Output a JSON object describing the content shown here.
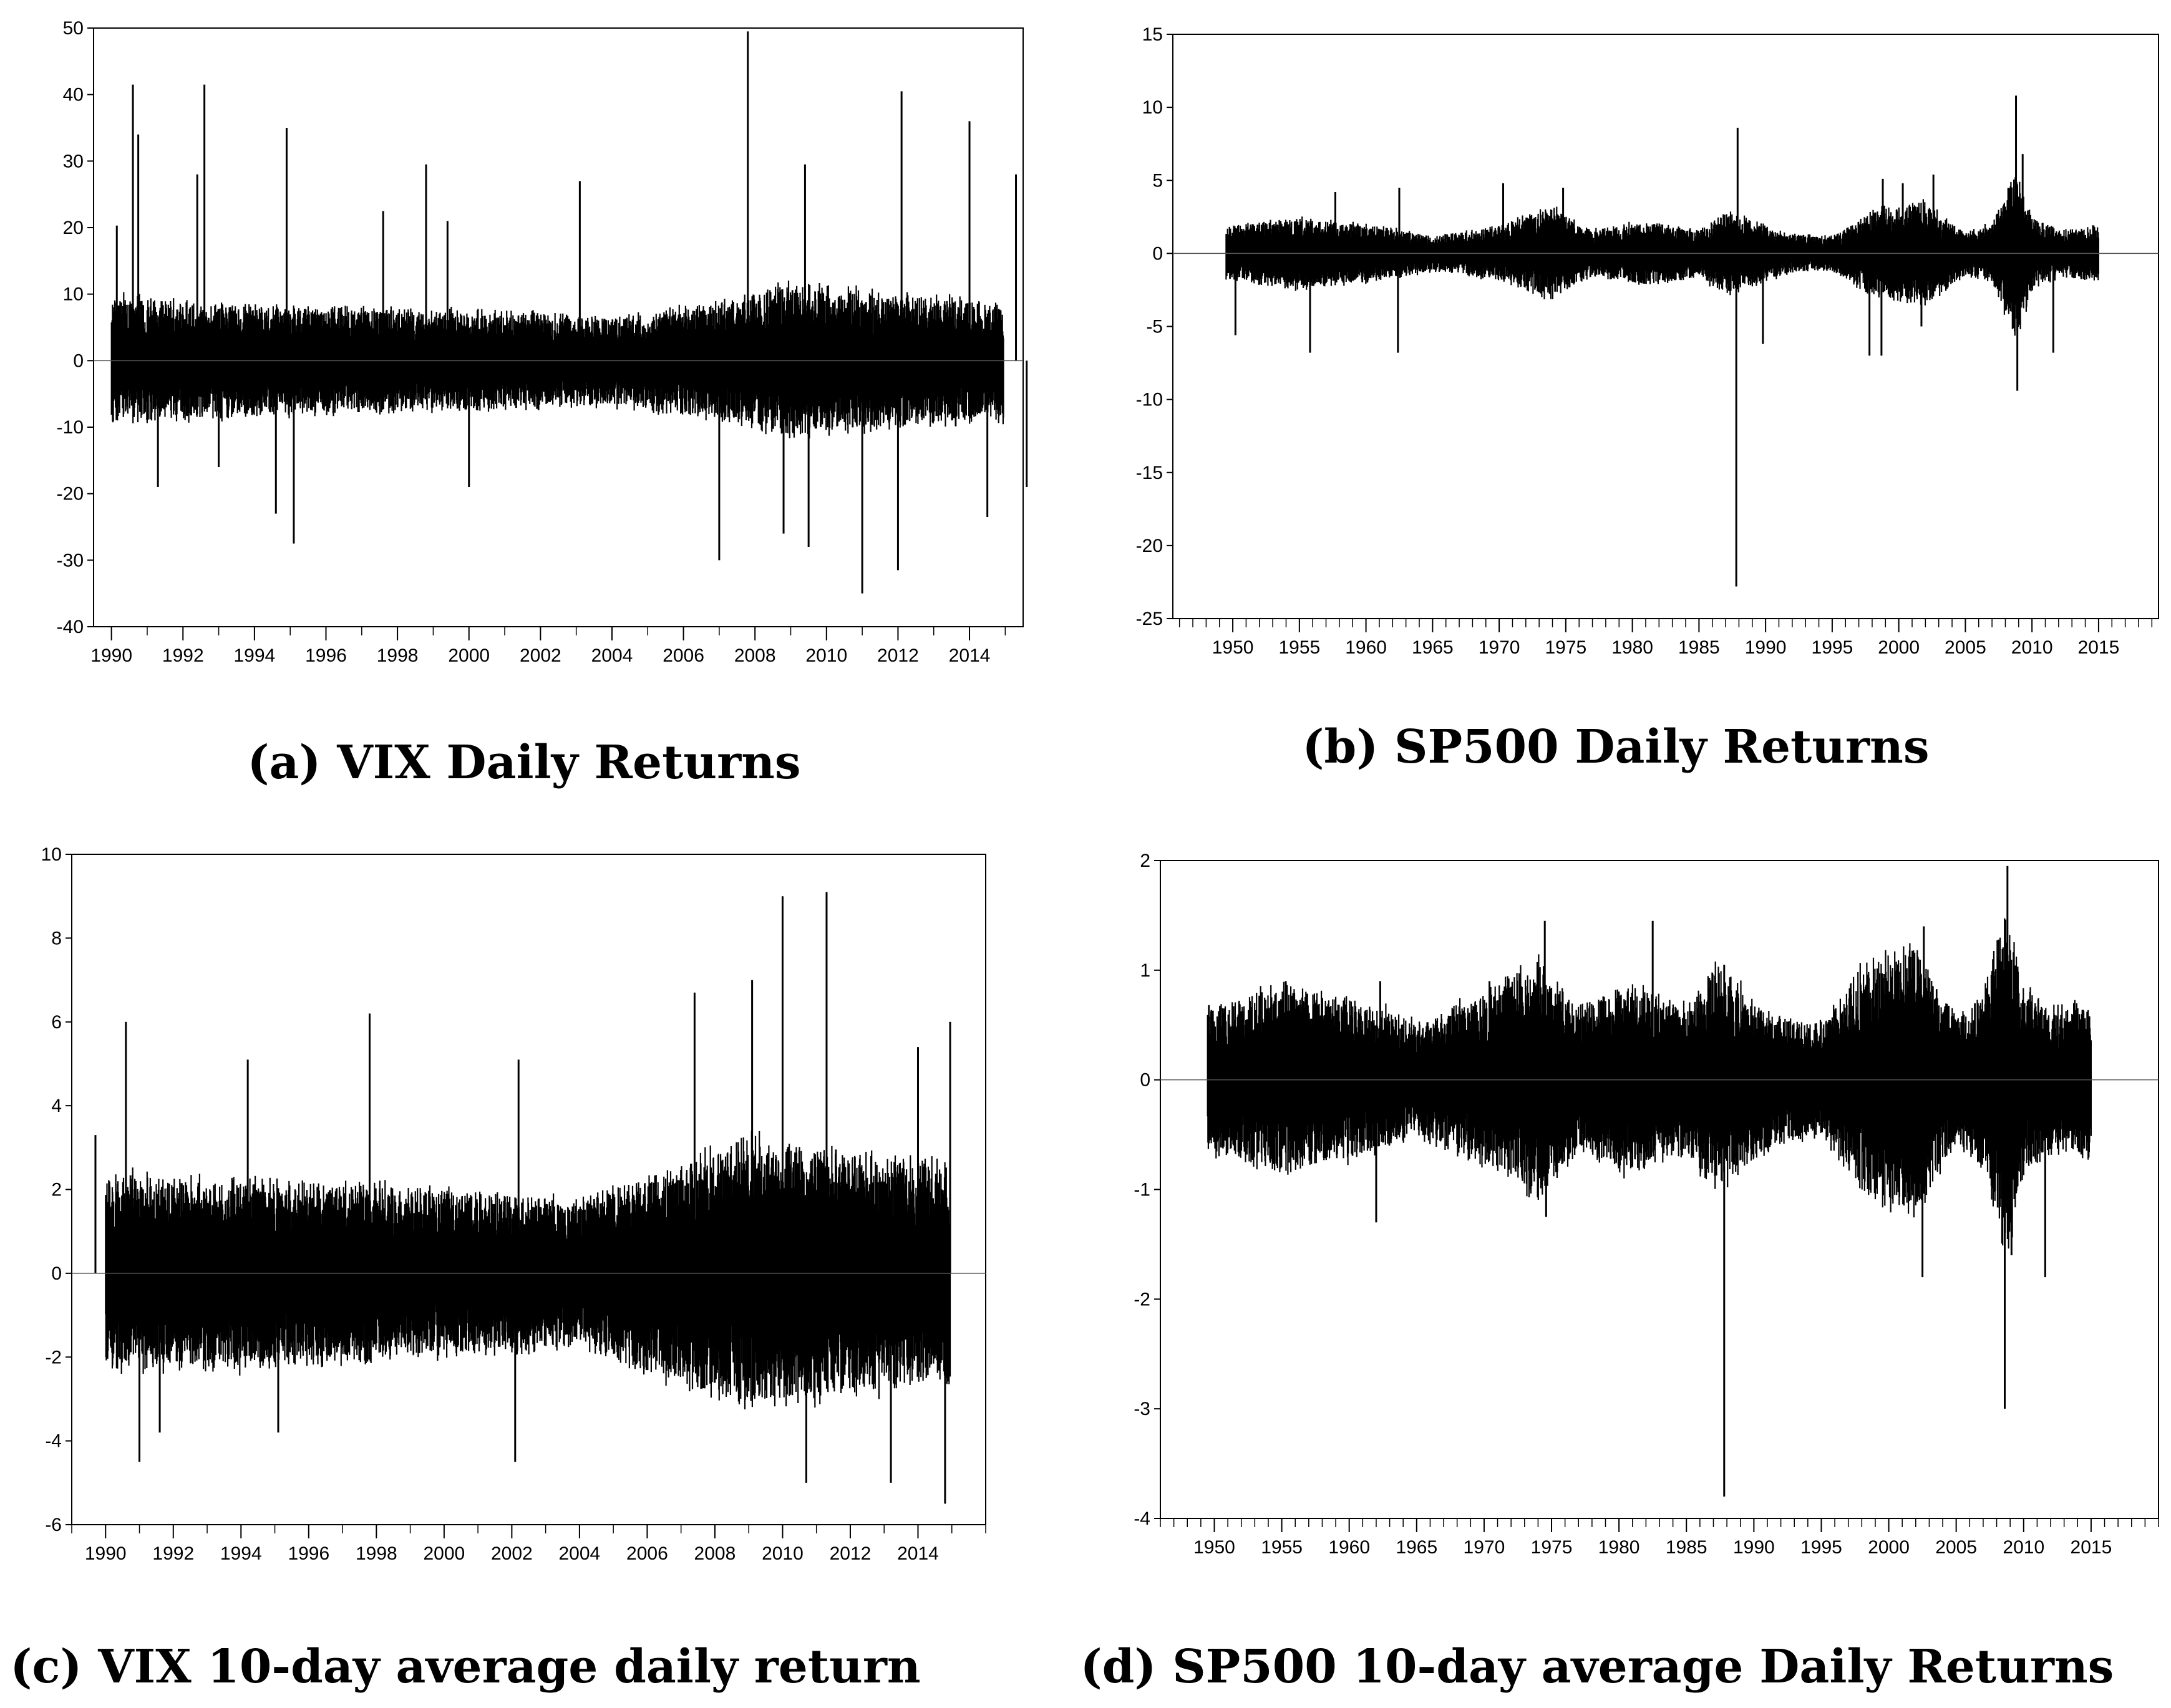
{
  "chart_data": [
    {
      "type": "line",
      "caption": "(a) VIX Daily Returns",
      "x_range": [
        1989.5,
        2015.5
      ],
      "ylim": [
        -40,
        50
      ],
      "y_ticks": [
        "50",
        "40",
        "30",
        "20",
        "10",
        "0",
        "-10",
        "-20",
        "-30",
        "-40"
      ],
      "x_ticks": [
        "1990",
        "1992",
        "1994",
        "1996",
        "1998",
        "2000",
        "2002",
        "2004",
        "2006",
        "2008",
        "2010",
        "2012",
        "2014"
      ],
      "data_range": [
        1990.0,
        2014.95
      ],
      "zero_line": true,
      "series_color": "#000000",
      "band": [
        [
          1990,
          6.5
        ],
        [
          1996,
          5.5
        ],
        [
          2002,
          5
        ],
        [
          2004,
          4.5
        ],
        [
          2007,
          6
        ],
        [
          2009,
          8
        ],
        [
          2012,
          7
        ],
        [
          2015,
          6
        ]
      ],
      "spikes": [
        [
          1990.15,
          20.3
        ],
        [
          1990.6,
          41.5
        ],
        [
          1990.75,
          34
        ],
        [
          1991.3,
          -19
        ],
        [
          1992.6,
          41.5
        ],
        [
          1992.4,
          28
        ],
        [
          1993.0,
          -16
        ],
        [
          1994.6,
          -23
        ],
        [
          1994.9,
          35
        ],
        [
          1995.1,
          -27.5
        ],
        [
          1997.6,
          22.5
        ],
        [
          1998.8,
          29.5
        ],
        [
          1999.4,
          21
        ],
        [
          2000.0,
          -19
        ],
        [
          2003.1,
          27
        ],
        [
          2007.0,
          -30
        ],
        [
          2007.8,
          49.5
        ],
        [
          2008.8,
          -26
        ],
        [
          2009.4,
          29.5
        ],
        [
          2009.5,
          -28
        ],
        [
          2011.0,
          -35
        ],
        [
          2012.1,
          40.5
        ],
        [
          2012.0,
          -31.5
        ],
        [
          2014.0,
          36
        ],
        [
          2014.5,
          -23.5
        ],
        [
          2015.3,
          28
        ],
        [
          2015.6,
          -19
        ]
      ]
    },
    {
      "type": "line",
      "caption": "(b) SP500 Daily Returns",
      "x_range": [
        1945.5,
        2019.5
      ],
      "ylim": [
        -25,
        15
      ],
      "y_ticks": [
        "15",
        "10",
        "5",
        "0",
        "-5",
        "-10",
        "-15",
        "-20",
        "-25"
      ],
      "x_ticks": [
        "1950",
        "1955",
        "1960",
        "1965",
        "1970",
        "1975",
        "1980",
        "1985",
        "1990",
        "1995",
        "2000",
        "2005",
        "2010",
        "2015"
      ],
      "data_range": [
        1949.5,
        2015.0
      ],
      "zero_line": true,
      "series_color": "#000000",
      "band": [
        [
          1950,
          1.3
        ],
        [
          1955,
          1.7
        ],
        [
          1962,
          1.2
        ],
        [
          1965,
          0.8
        ],
        [
          1970,
          1.3
        ],
        [
          1974,
          2.2
        ],
        [
          1977,
          1.1
        ],
        [
          1981,
          1.5
        ],
        [
          1985,
          1.1
        ],
        [
          1987,
          2
        ],
        [
          1992,
          0.9
        ],
        [
          1995,
          0.8
        ],
        [
          1998,
          2
        ],
        [
          2002,
          2.5
        ],
        [
          2005,
          1
        ],
        [
          2007,
          1.4
        ],
        [
          2008.8,
          4
        ],
        [
          2010,
          1.7
        ],
        [
          2012,
          1.1
        ],
        [
          2015,
          1.3
        ]
      ],
      "spikes": [
        [
          1950.2,
          -5.6
        ],
        [
          1955.8,
          -6.8
        ],
        [
          1957.7,
          4.2
        ],
        [
          1962.4,
          -6.8
        ],
        [
          1962.5,
          4.5
        ],
        [
          1970.3,
          4.8
        ],
        [
          1974.8,
          4.5
        ],
        [
          1987.8,
          -22.8
        ],
        [
          1987.9,
          8.6
        ],
        [
          1989.8,
          -6.2
        ],
        [
          1997.8,
          -7
        ],
        [
          1998.7,
          -7
        ],
        [
          1998.8,
          5.1
        ],
        [
          2000.3,
          4.8
        ],
        [
          2001.7,
          -5
        ],
        [
          2002.6,
          5.4
        ],
        [
          2008.8,
          10.8
        ],
        [
          2008.9,
          -9.4
        ],
        [
          2009.3,
          6.8
        ],
        [
          2011.6,
          -6.8
        ]
      ]
    },
    {
      "type": "line",
      "caption": "(c) VIX 10-day average daily return",
      "x_range": [
        1989.0,
        2016.0
      ],
      "ylim": [
        -6,
        10
      ],
      "y_ticks": [
        "10",
        "8",
        "6",
        "4",
        "2",
        "0",
        "-2",
        "-4",
        "-6"
      ],
      "x_ticks": [
        "1990",
        "1992",
        "1994",
        "1996",
        "1998",
        "2000",
        "2002",
        "2004",
        "2006",
        "2008",
        "2010",
        "2012",
        "2014"
      ],
      "data_range": [
        1990.0,
        2014.95
      ],
      "zero_line": true,
      "series_color": "#000000",
      "band": [
        [
          1990,
          1.6
        ],
        [
          1996,
          1.5
        ],
        [
          2004,
          1.2
        ],
        [
          2007,
          1.8
        ],
        [
          2009,
          2.2
        ],
        [
          2012,
          2
        ],
        [
          2015,
          1.8
        ]
      ],
      "spikes": [
        [
          1989.7,
          3.3
        ],
        [
          1990.6,
          6
        ],
        [
          1991.0,
          -4.5
        ],
        [
          1991.6,
          -3.8
        ],
        [
          1994.2,
          5.1
        ],
        [
          1995.1,
          -3.8
        ],
        [
          1997.8,
          6.2
        ],
        [
          2002.2,
          5.1
        ],
        [
          2002.1,
          -4.5
        ],
        [
          2007.4,
          6.7
        ],
        [
          2009.1,
          7
        ],
        [
          2010.0,
          9
        ],
        [
          2010.7,
          -5
        ],
        [
          2011.3,
          9.1
        ],
        [
          2013.2,
          -5
        ],
        [
          2014.0,
          5.4
        ],
        [
          2014.8,
          -5.5
        ],
        [
          2014.95,
          6
        ]
      ]
    },
    {
      "type": "line",
      "caption": "(d) SP500 10-day average Daily Returns",
      "x_range": [
        1946.0,
        2020.0
      ],
      "ylim": [
        -4,
        2
      ],
      "y_ticks": [
        "2",
        "1",
        "0",
        "-1",
        "-2",
        "-3",
        "-4"
      ],
      "x_ticks": [
        "1950",
        "1955",
        "1960",
        "1965",
        "1970",
        "1975",
        "1980",
        "1985",
        "1990",
        "1995",
        "2000",
        "2005",
        "2010",
        "2015"
      ],
      "data_range": [
        1949.5,
        2015.0
      ],
      "zero_line": true,
      "series_color": "#000000",
      "band": [
        [
          1950,
          0.45
        ],
        [
          1955,
          0.6
        ],
        [
          1962,
          0.45
        ],
        [
          1965,
          0.35
        ],
        [
          1970,
          0.55
        ],
        [
          1974,
          0.75
        ],
        [
          1977,
          0.45
        ],
        [
          1981,
          0.6
        ],
        [
          1985,
          0.45
        ],
        [
          1987,
          0.7
        ],
        [
          1992,
          0.4
        ],
        [
          1995,
          0.35
        ],
        [
          1998,
          0.7
        ],
        [
          2002,
          0.85
        ],
        [
          2005,
          0.4
        ],
        [
          2007,
          0.55
        ],
        [
          2008.8,
          1.1
        ],
        [
          2010,
          0.6
        ],
        [
          2012,
          0.45
        ],
        [
          2015,
          0.5
        ]
      ],
      "spikes": [
        [
          1955.3,
          0.9
        ],
        [
          1962.0,
          -1.3
        ],
        [
          1962.3,
          0.9
        ],
        [
          1970.4,
          0.9
        ],
        [
          1974.5,
          1.45
        ],
        [
          1974.6,
          -1.25
        ],
        [
          1982.5,
          1.45
        ],
        [
          1987.8,
          -3.8
        ],
        [
          1987.8,
          1.05
        ],
        [
          2002.5,
          -1.8
        ],
        [
          2002.6,
          1.4
        ],
        [
          2008.6,
          -3
        ],
        [
          2008.8,
          1.95
        ],
        [
          2009.1,
          -1.6
        ],
        [
          2011.6,
          -1.8
        ]
      ]
    }
  ]
}
